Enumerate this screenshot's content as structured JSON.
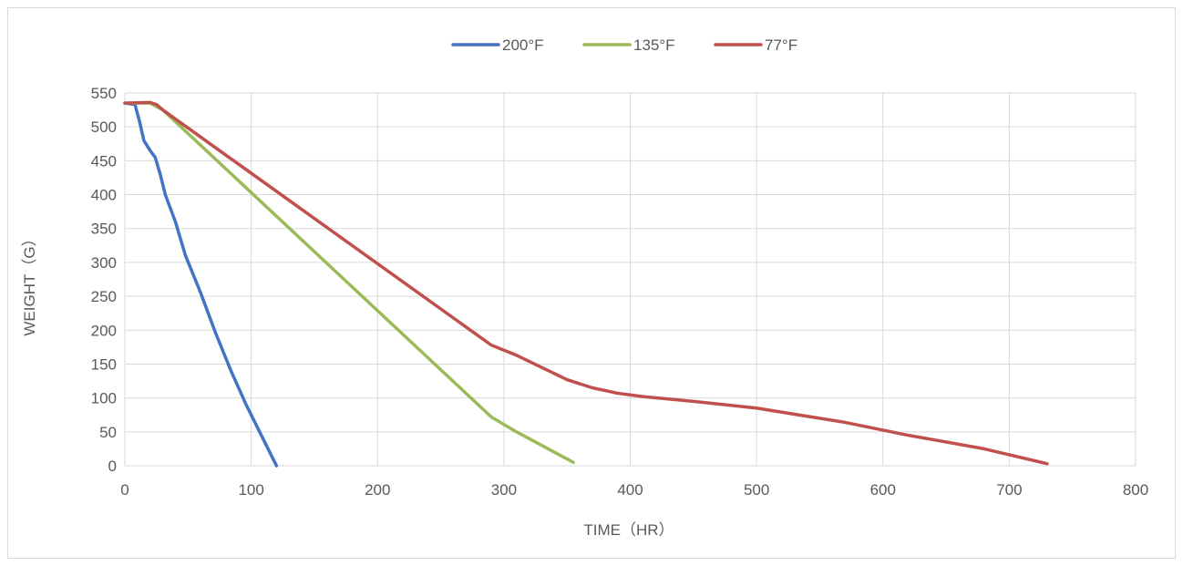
{
  "chart_data": {
    "type": "line",
    "title": "",
    "xlabel": "TIME（HR）",
    "ylabel": "WEIGHT（G）",
    "xlim": [
      0,
      800
    ],
    "ylim": [
      0,
      550
    ],
    "x_ticks": [
      0,
      100,
      200,
      300,
      400,
      500,
      600,
      700,
      800
    ],
    "y_ticks": [
      0,
      50,
      100,
      150,
      200,
      250,
      300,
      350,
      400,
      450,
      500,
      550
    ],
    "grid": true,
    "legend_position": "top-center",
    "series": [
      {
        "name": "200°F",
        "color": "#4472c4",
        "points": [
          [
            0,
            535
          ],
          [
            8,
            533
          ],
          [
            12,
            505
          ],
          [
            15,
            480
          ],
          [
            20,
            465
          ],
          [
            24,
            455
          ],
          [
            28,
            430
          ],
          [
            32,
            400
          ],
          [
            40,
            360
          ],
          [
            48,
            310
          ],
          [
            60,
            255
          ],
          [
            72,
            195
          ],
          [
            84,
            140
          ],
          [
            96,
            90
          ],
          [
            108,
            45
          ],
          [
            120,
            0
          ]
        ]
      },
      {
        "name": "135°F",
        "color": "#9bbb59",
        "points": [
          [
            0,
            535
          ],
          [
            20,
            535
          ],
          [
            30,
            525
          ],
          [
            290,
            72
          ],
          [
            310,
            50
          ],
          [
            330,
            30
          ],
          [
            355,
            5
          ]
        ]
      },
      {
        "name": "77°F",
        "color": "#c0504d",
        "points": [
          [
            0,
            535
          ],
          [
            20,
            536
          ],
          [
            25,
            533
          ],
          [
            30,
            525
          ],
          [
            290,
            178
          ],
          [
            310,
            163
          ],
          [
            330,
            145
          ],
          [
            350,
            127
          ],
          [
            370,
            115
          ],
          [
            390,
            107
          ],
          [
            410,
            102
          ],
          [
            450,
            95
          ],
          [
            500,
            85
          ],
          [
            570,
            64
          ],
          [
            620,
            45
          ],
          [
            680,
            25
          ],
          [
            730,
            3
          ]
        ]
      }
    ]
  }
}
